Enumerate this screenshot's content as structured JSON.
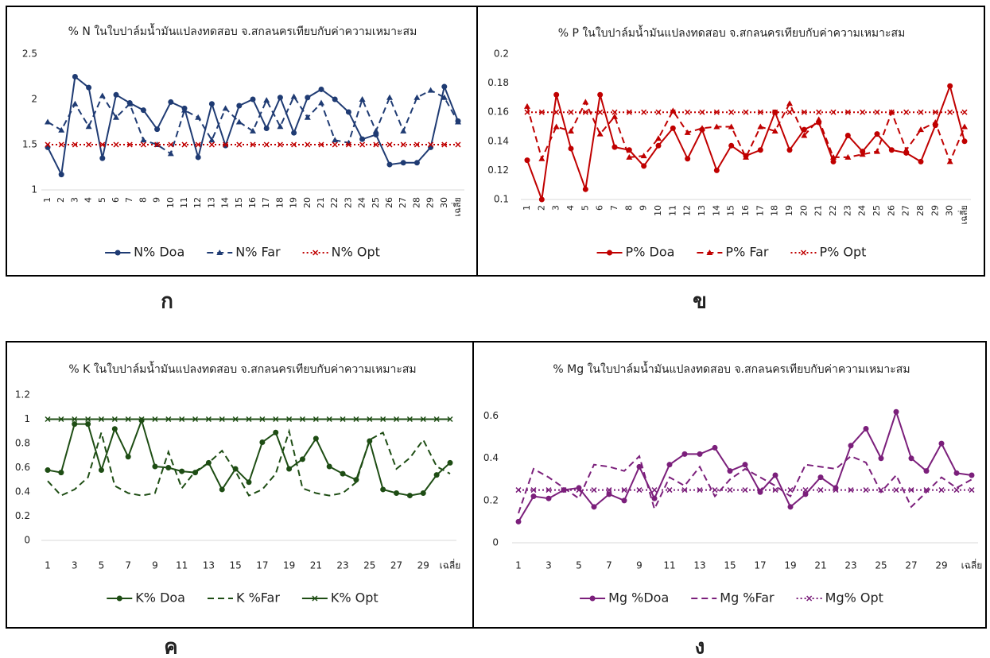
{
  "chart_data": [
    {
      "type": "line",
      "label": "ก",
      "title": "% N ในใบปาล์มน้ำมันแปลงทดสอบ จ.สกลนครเทียบกับค่าความเหมาะสม",
      "categories": [
        "1",
        "2",
        "3",
        "4",
        "5",
        "6",
        "7",
        "8",
        "9",
        "10",
        "11",
        "12",
        "13",
        "14",
        "15",
        "16",
        "17",
        "18",
        "19",
        "20",
        "21",
        "22",
        "23",
        "24",
        "25",
        "26",
        "27",
        "28",
        "29",
        "30",
        "เฉลี่ย"
      ],
      "ylim": [
        1,
        2.5
      ],
      "yticks": [
        1,
        1.5,
        2,
        2.5
      ],
      "grid": false,
      "series": [
        {
          "name": "N% Doa",
          "color": "#1f3b73",
          "dash": "solid",
          "marker": "circle",
          "values": [
            1.47,
            1.17,
            2.25,
            2.13,
            1.35,
            2.05,
            1.96,
            1.88,
            1.67,
            1.97,
            1.9,
            1.36,
            1.95,
            1.49,
            1.93,
            2.0,
            1.68,
            2.02,
            1.63,
            2.02,
            2.11,
            2.0,
            1.86,
            1.56,
            1.61,
            1.28,
            1.3,
            1.3,
            1.47,
            2.14,
            1.76
          ]
        },
        {
          "name": "N% Far",
          "color": "#1f3b73",
          "dash": "dashed",
          "marker": "triangle",
          "values": [
            1.75,
            1.66,
            1.95,
            1.7,
            2.04,
            1.8,
            1.95,
            1.55,
            1.5,
            1.4,
            1.88,
            1.8,
            1.55,
            1.9,
            1.75,
            1.65,
            1.99,
            1.7,
            2.03,
            1.8,
            1.96,
            1.55,
            1.52,
            2.0,
            1.65,
            2.02,
            1.65,
            2.02,
            2.1,
            2.02,
            1.75
          ]
        },
        {
          "name": "N% Opt",
          "color": "#c00000",
          "dash": "dotted",
          "marker": "x",
          "values": [
            1.5,
            1.5,
            1.5,
            1.5,
            1.5,
            1.5,
            1.5,
            1.5,
            1.5,
            1.5,
            1.5,
            1.5,
            1.5,
            1.5,
            1.5,
            1.5,
            1.5,
            1.5,
            1.5,
            1.5,
            1.5,
            1.5,
            1.5,
            1.5,
            1.5,
            1.5,
            1.5,
            1.5,
            1.5,
            1.5,
            1.5
          ]
        }
      ]
    },
    {
      "type": "line",
      "label": "ข",
      "title": "% P ในใบปาล์มน้ำมันแปลงทดสอบ จ.สกลนครเทียบกับค่าความเหมาะสม",
      "categories": [
        "1",
        "2",
        "3",
        "4",
        "5",
        "6",
        "7",
        "8",
        "9",
        "10",
        "11",
        "12",
        "13",
        "14",
        "15",
        "16",
        "17",
        "18",
        "19",
        "20",
        "21",
        "22",
        "23",
        "24",
        "25",
        "26",
        "27",
        "28",
        "29",
        "30",
        "เฉลี่ย"
      ],
      "ylim": [
        0.1,
        0.2
      ],
      "yticks": [
        0.1,
        0.12,
        0.14,
        0.16,
        0.18,
        0.2
      ],
      "grid": false,
      "series": [
        {
          "name": "P% Doa",
          "color": "#c00000",
          "dash": "solid",
          "marker": "circle",
          "values": [
            0.127,
            0.1,
            0.172,
            0.135,
            0.107,
            0.172,
            0.136,
            0.134,
            0.123,
            0.137,
            0.149,
            0.128,
            0.148,
            0.12,
            0.137,
            0.13,
            0.134,
            0.16,
            0.134,
            0.148,
            0.153,
            0.126,
            0.144,
            0.133,
            0.145,
            0.134,
            0.132,
            0.126,
            0.151,
            0.178,
            0.14
          ]
        },
        {
          "name": "P% Far",
          "color": "#c00000",
          "dash": "dashed",
          "marker": "triangle",
          "values": [
            0.164,
            0.128,
            0.15,
            0.147,
            0.167,
            0.145,
            0.157,
            0.129,
            0.13,
            0.142,
            0.161,
            0.146,
            0.149,
            0.15,
            0.15,
            0.129,
            0.15,
            0.147,
            0.166,
            0.144,
            0.155,
            0.129,
            0.129,
            0.131,
            0.133,
            0.16,
            0.134,
            0.148,
            0.153,
            0.126,
            0.15
          ]
        },
        {
          "name": "P% Opt",
          "color": "#c00000",
          "dash": "dotted",
          "marker": "x",
          "values": [
            0.16,
            0.16,
            0.16,
            0.16,
            0.16,
            0.16,
            0.16,
            0.16,
            0.16,
            0.16,
            0.16,
            0.16,
            0.16,
            0.16,
            0.16,
            0.16,
            0.16,
            0.16,
            0.16,
            0.16,
            0.16,
            0.16,
            0.16,
            0.16,
            0.16,
            0.16,
            0.16,
            0.16,
            0.16,
            0.16,
            0.16
          ]
        }
      ]
    },
    {
      "type": "line",
      "label": "ค",
      "title": "% K ในใบปาล์มน้ำมันแปลงทดสอบ จ.สกลนครเทียบกับค่าความเหมาะสม",
      "categories": [
        "1",
        null,
        "3",
        null,
        "5",
        null,
        "7",
        null,
        "9",
        null,
        "11",
        null,
        "13",
        null,
        "15",
        null,
        "17",
        null,
        "19",
        null,
        "21",
        null,
        "23",
        null,
        "25",
        null,
        "27",
        null,
        "29",
        null,
        "เฉลี่ย"
      ],
      "ylim": [
        0,
        1.2
      ],
      "yticks": [
        0,
        0.2,
        0.4,
        0.6,
        0.8,
        1,
        1.2
      ],
      "grid": false,
      "series": [
        {
          "name": "K% Doa",
          "color": "#1e4d14",
          "dash": "solid",
          "marker": "circle",
          "values": [
            0.58,
            0.56,
            0.96,
            0.96,
            0.58,
            0.92,
            0.69,
            0.99,
            0.61,
            0.6,
            0.57,
            0.56,
            0.64,
            0.42,
            0.59,
            0.48,
            0.81,
            0.89,
            0.59,
            0.67,
            0.84,
            0.61,
            0.55,
            0.5,
            0.82,
            0.42,
            0.39,
            0.37,
            0.39,
            0.54,
            0.64
          ]
        },
        {
          "name": "K %Far",
          "color": "#1e4d14",
          "dash": "dashed",
          "marker": "none",
          "values": [
            0.49,
            0.37,
            0.42,
            0.52,
            0.89,
            0.45,
            0.39,
            0.37,
            0.39,
            0.73,
            0.43,
            0.57,
            0.64,
            0.74,
            0.57,
            0.37,
            0.42,
            0.55,
            0.9,
            0.43,
            0.39,
            0.37,
            0.39,
            0.48,
            0.83,
            0.89,
            0.59,
            0.68,
            0.83,
            0.61,
            0.55
          ]
        },
        {
          "name": "K% Opt",
          "color": "#1e4d14",
          "dash": "solid",
          "marker": "x",
          "values": [
            1,
            1,
            1,
            1,
            1,
            1,
            1,
            1,
            1,
            1,
            1,
            1,
            1,
            1,
            1,
            1,
            1,
            1,
            1,
            1,
            1,
            1,
            1,
            1,
            1,
            1,
            1,
            1,
            1,
            1,
            1
          ]
        }
      ]
    },
    {
      "type": "line",
      "label": "ง",
      "title": "% Mg ในใบปาล์มน้ำมันแปลงทดสอบ จ.สกลนครเทียบกับค่าความเหมาะสม",
      "categories": [
        "1",
        null,
        "3",
        null,
        "5",
        null,
        "7",
        null,
        "9",
        null,
        "11",
        null,
        "13",
        null,
        "15",
        null,
        "17",
        null,
        "19",
        null,
        "21",
        null,
        "23",
        null,
        "25",
        null,
        "27",
        null,
        "29",
        null,
        "เฉลี่ย"
      ],
      "ylim": [
        0,
        0.7
      ],
      "yticks": [
        0,
        0.2,
        0.4,
        0.6
      ],
      "grid": false,
      "series": [
        {
          "name": "Mg %Doa",
          "color": "#7b1f7b",
          "dash": "solid",
          "marker": "circle",
          "values": [
            0.1,
            0.22,
            0.21,
            0.25,
            0.26,
            0.17,
            0.23,
            0.2,
            0.36,
            0.21,
            0.37,
            0.42,
            0.42,
            0.45,
            0.34,
            0.37,
            0.24,
            0.32,
            0.17,
            0.23,
            0.31,
            0.26,
            0.46,
            0.54,
            0.4,
            0.62,
            0.4,
            0.34,
            0.47,
            0.33,
            0.32
          ]
        },
        {
          "name": "Mg %Far",
          "color": "#7b1f7b",
          "dash": "dashed",
          "marker": "none",
          "values": [
            0.14,
            0.35,
            0.31,
            0.26,
            0.21,
            0.37,
            0.36,
            0.34,
            0.41,
            0.16,
            0.31,
            0.27,
            0.36,
            0.22,
            0.3,
            0.35,
            0.31,
            0.27,
            0.22,
            0.37,
            0.36,
            0.35,
            0.41,
            0.38,
            0.24,
            0.32,
            0.17,
            0.24,
            0.31,
            0.26,
            0.3
          ]
        },
        {
          "name": "Mg% Opt",
          "color": "#7b1f7b",
          "dash": "dotted",
          "marker": "x",
          "values": [
            0.25,
            0.25,
            0.25,
            0.25,
            0.25,
            0.25,
            0.25,
            0.25,
            0.25,
            0.25,
            0.25,
            0.25,
            0.25,
            0.25,
            0.25,
            0.25,
            0.25,
            0.25,
            0.25,
            0.25,
            0.25,
            0.25,
            0.25,
            0.25,
            0.25,
            0.25,
            0.25,
            0.25,
            0.25,
            0.25,
            0.25
          ]
        }
      ]
    }
  ]
}
